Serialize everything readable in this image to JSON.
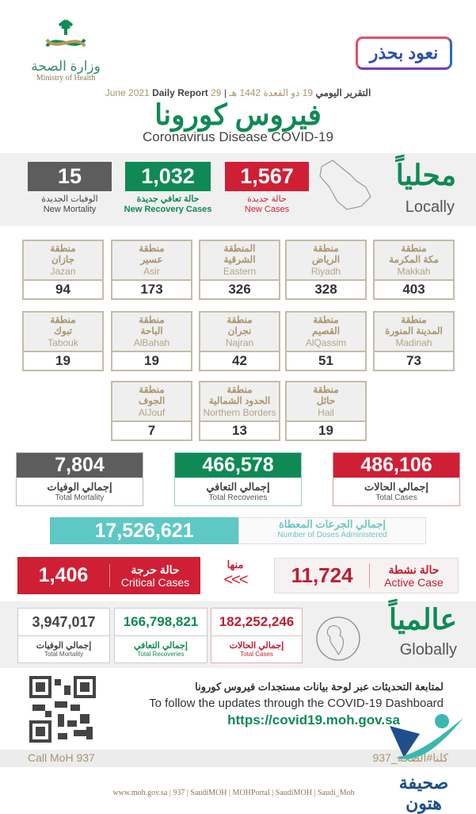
{
  "header": {
    "ministry_ar": "وزارة الصحة",
    "ministry_en": "Ministry of Health",
    "campaign": "نعود بحذر",
    "report_ar": "التقرير اليومي",
    "date_hijri": "19 ذو القعدة 1442 هـ",
    "date_greg": "29 June 2021",
    "report_en": "Daily Report",
    "title_ar": "فيروس كورونا",
    "title_en": "Coronavirus Disease COVID-19"
  },
  "local": {
    "label_ar": "محلياً",
    "label_en": "Locally",
    "new_cases": {
      "value": "1,567",
      "ar": "حالة جديدة",
      "en": "New Cases"
    },
    "new_recovery": {
      "value": "1,032",
      "ar": "حالة تعافي جديدة",
      "en": "New Recovery Cases"
    },
    "new_mortality": {
      "value": "15",
      "ar": "الوفيات الجديدة",
      "en": "New Mortality"
    }
  },
  "regions": [
    {
      "ar1": "منطقة",
      "ar2": "مكة المكرمة",
      "en": "Makkah",
      "count": "403"
    },
    {
      "ar1": "منطقة",
      "ar2": "الرياض",
      "en": "Riyadh",
      "count": "328"
    },
    {
      "ar1": "المنطقة",
      "ar2": "الشرقية",
      "en": "Eastern",
      "count": "326"
    },
    {
      "ar1": "منطقة",
      "ar2": "عسير",
      "en": "Asir",
      "count": "173"
    },
    {
      "ar1": "منطقة",
      "ar2": "جازان",
      "en": "Jazan",
      "count": "94"
    },
    {
      "ar1": "منطقة",
      "ar2": "المدينة المنورة",
      "en": "Madinah",
      "count": "73"
    },
    {
      "ar1": "منطقة",
      "ar2": "القصيم",
      "en": "AlQassim",
      "count": "51"
    },
    {
      "ar1": "منطقة",
      "ar2": "نجران",
      "en": "Najran",
      "count": "42"
    },
    {
      "ar1": "منطقة",
      "ar2": "الباحة",
      "en": "AlBahah",
      "count": "19"
    },
    {
      "ar1": "منطقة",
      "ar2": "تبوك",
      "en": "Tabouk",
      "count": "19"
    },
    {
      "ar1": "منطقة",
      "ar2": "حائل",
      "en": "Hail",
      "count": "19"
    },
    {
      "ar1": "منطقة",
      "ar2": "الحدود الشمالية",
      "en": "Northern Borders",
      "count": "13"
    },
    {
      "ar1": "منطقة",
      "ar2": "الجوف",
      "en": "AlJouf",
      "count": "7"
    }
  ],
  "totals": {
    "cases": {
      "value": "486,106",
      "ar": "إجمالي الحالات",
      "en": "Total Cases"
    },
    "recoveries": {
      "value": "466,578",
      "ar": "إجمالي التعافي",
      "en": "Total Recoveries"
    },
    "mortality": {
      "value": "7,804",
      "ar": "إجمالي الوفيات",
      "en": "Total Mortality"
    }
  },
  "doses": {
    "value": "17,526,621",
    "ar": "إجمالي الجرعات المعطاة",
    "en": "Number of Doses Administered"
  },
  "active": {
    "value": "11,724",
    "ar": "حالة نشطة",
    "en": "Active Case"
  },
  "of_which": "منها",
  "arrows": "<<<",
  "critical": {
    "value": "1,406",
    "ar": "حالة حرجة",
    "en": "Critical Cases"
  },
  "global": {
    "label_ar": "عالمياً",
    "label_en": "Globally",
    "cases": {
      "value": "182,252,246",
      "ar": "إجمالي الحالات",
      "en": "Total Cases"
    },
    "recoveries": {
      "value": "166,798,821",
      "ar": "إجمالي التعافي",
      "en": "Total Recoveries"
    },
    "mortality": {
      "value": "3,947,017",
      "ar": "إجمالي الوفيات",
      "en": "Total Mortality"
    }
  },
  "dashboard": {
    "ar": "لمتابعة التحديثات عبر لوحة بيانات مستجدات فيروس كورونا",
    "en": "To follow the updates through the COVID-19 Dashboard",
    "url": "https://covid19.moh.gov.sa"
  },
  "call": {
    "en": "Call MoH 937",
    "ar": "كلنا#الصحة_937"
  },
  "footer": [
    "www.moh.gov.sa",
    "937",
    "SaudiMOH",
    "MOHPortal",
    "SaudiMOH",
    "Saudi_Moh"
  ],
  "watermark": "صحيفة هتون",
  "colors": {
    "red": "#cf1f35",
    "green": "#0f8a55",
    "gray": "#5d5d5d",
    "teal": "#5ec8c4",
    "gold": "#a8956b"
  }
}
